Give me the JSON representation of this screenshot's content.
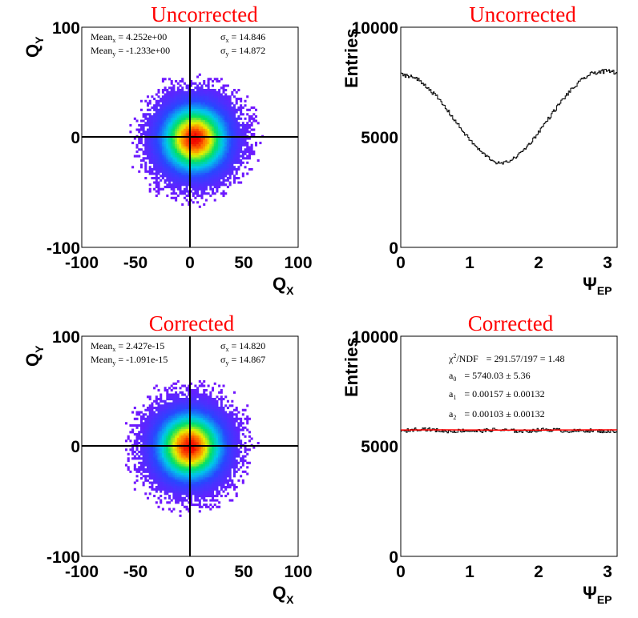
{
  "chart_data": [
    {
      "type": "heatmap",
      "title": "Uncorrected",
      "xlabel_main": "Q",
      "xlabel_sub": "X",
      "ylabel_main": "Q",
      "ylabel_sub": "Y",
      "xlim": [
        -100,
        100
      ],
      "ylim": [
        -100,
        100
      ],
      "xticks": [
        "-100",
        "-50",
        "0",
        "50",
        "100"
      ],
      "yticks": [
        "-100",
        "0",
        "100"
      ],
      "grid": false,
      "distribution": {
        "mean_x": 4.252,
        "mean_y": -1.233,
        "sigma_x": 14.846,
        "sigma_y": 14.872
      },
      "stats": {
        "mean_x_label": "Mean",
        "mean_x_sub": "x",
        "mean_x_value": " = 4.252e+00",
        "mean_y_label": "Mean",
        "mean_y_sub": "y",
        "mean_y_value": " = -1.233e+00",
        "sigma_x_label": "σ",
        "sigma_x_sub": "x",
        "sigma_x_value": " = 14.846",
        "sigma_y_label": "σ",
        "sigma_y_sub": "y",
        "sigma_y_value": " = 14.872"
      }
    },
    {
      "type": "line",
      "title": "Uncorrected",
      "ylabel": "Entries",
      "xlabel_main": "Ψ",
      "xlabel_sub": "EP",
      "xlim": [
        0,
        3.1416
      ],
      "ylim": [
        0,
        10000
      ],
      "xticks": [
        "0",
        "1",
        "2",
        "3"
      ],
      "yticks": [
        "0",
        "5000",
        "10000"
      ],
      "grid": false,
      "series": [
        {
          "values": [
            7850,
            7800,
            7600,
            7280,
            6850,
            6350,
            5800,
            5250,
            4750,
            4330,
            4020,
            3850,
            3800,
            3850,
            4050,
            4400,
            4850,
            5400,
            5950,
            6500,
            7000,
            7400,
            7750,
            7950,
            8000,
            7950
          ]
        }
      ],
      "x": [
        0,
        0.13,
        0.26,
        0.39,
        0.52,
        0.65,
        0.78,
        0.91,
        1.04,
        1.17,
        1.3,
        1.39,
        1.45,
        1.52,
        1.65,
        1.78,
        1.91,
        2.04,
        2.17,
        2.3,
        2.43,
        2.56,
        2.69,
        2.82,
        3.0,
        3.14
      ]
    },
    {
      "type": "heatmap",
      "title": "Corrected",
      "xlabel_main": "Q",
      "xlabel_sub": "X",
      "ylabel_main": "Q",
      "ylabel_sub": "Y",
      "xlim": [
        -100,
        100
      ],
      "ylim": [
        -100,
        100
      ],
      "xticks": [
        "-100",
        "-50",
        "0",
        "50",
        "100"
      ],
      "yticks": [
        "-100",
        "0",
        "100"
      ],
      "grid": false,
      "distribution": {
        "mean_x": 0,
        "mean_y": 0,
        "sigma_x": 14.82,
        "sigma_y": 14.867
      },
      "stats": {
        "mean_x_label": "Mean",
        "mean_x_sub": "x",
        "mean_x_value": " = 2.427e-15",
        "mean_y_label": "Mean",
        "mean_y_sub": "y",
        "mean_y_value": " = -1.091e-15",
        "sigma_x_label": "σ",
        "sigma_x_sub": "x",
        "sigma_x_value": " = 14.820",
        "sigma_y_label": "σ",
        "sigma_y_sub": "y",
        "sigma_y_value": " = 14.867"
      }
    },
    {
      "type": "line",
      "title": "Corrected",
      "ylabel": "Entries",
      "xlabel_main": "Ψ",
      "xlabel_sub": "EP",
      "xlim": [
        0,
        3.1416
      ],
      "ylim": [
        0,
        10000
      ],
      "xticks": [
        "0",
        "1",
        "2",
        "3"
      ],
      "yticks": [
        "0",
        "5000",
        "10000"
      ],
      "grid": false,
      "series": [
        {
          "color": "#000000",
          "values": [
            5650,
            5750,
            5800,
            5750,
            5700,
            5680,
            5720,
            5690,
            5700,
            5750,
            5730,
            5700,
            5680,
            5720,
            5760,
            5740,
            5700,
            5690,
            5720,
            5700,
            5680,
            5700
          ]
        },
        {
          "color": "#ff0000",
          "fit": true,
          "values": [
            5741,
            5743,
            5745,
            5746,
            5746,
            5745,
            5743,
            5741,
            5739,
            5737,
            5736,
            5735,
            5735,
            5736,
            5737,
            5739,
            5741,
            5743,
            5745,
            5746,
            5746,
            5745
          ]
        }
      ],
      "x": [
        0,
        0.15,
        0.3,
        0.45,
        0.6,
        0.75,
        0.9,
        1.05,
        1.2,
        1.35,
        1.5,
        1.65,
        1.8,
        1.95,
        2.1,
        2.25,
        2.4,
        2.55,
        2.7,
        2.85,
        3.0,
        3.14
      ],
      "fit_stats": {
        "chi2_label": "χ",
        "chi2_sup": "2",
        "chi2_rest": "/NDF",
        "chi2_value": "= 291.57/197 =  1.48",
        "a0_label": "a",
        "a0_sub": "0",
        "a0_value": "= 5740.03 ± 5.36",
        "a1_label": "a",
        "a1_sub": "1",
        "a1_value": "= 0.00157 ± 0.00132",
        "a2_label": "a",
        "a2_sub": "2",
        "a2_value": "= 0.00103 ± 0.00132"
      }
    }
  ]
}
